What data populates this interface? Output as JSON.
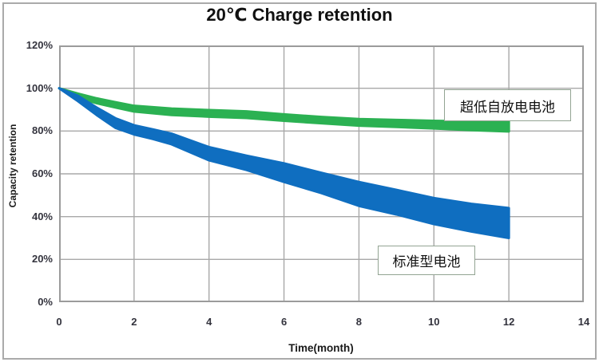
{
  "chart_data": {
    "type": "area",
    "title": "20℃ Charge retention",
    "xlabel": "Time(month)",
    "ylabel": "Capacity retention",
    "xlim": [
      0,
      14
    ],
    "ylim": [
      0,
      120
    ],
    "grid": true,
    "legend_position": "none",
    "x_ticks": [
      {
        "label": "0",
        "value": 0
      },
      {
        "label": "2",
        "value": 2
      },
      {
        "label": "4",
        "value": 4
      },
      {
        "label": "6",
        "value": 6
      },
      {
        "label": "8",
        "value": 8
      },
      {
        "label": "10",
        "value": 10
      },
      {
        "label": "12",
        "value": 12
      },
      {
        "label": "14",
        "value": 14
      }
    ],
    "y_ticks": [
      {
        "label": "0%",
        "value": 0
      },
      {
        "label": "20%",
        "value": 20
      },
      {
        "label": "40%",
        "value": 40
      },
      {
        "label": "60%",
        "value": 60
      },
      {
        "label": "80%",
        "value": 80
      },
      {
        "label": "100%",
        "value": 100
      },
      {
        "label": "120%",
        "value": 120
      }
    ],
    "series": [
      {
        "name": "超低自放电电池",
        "band": true,
        "color": "#2bb152",
        "x": [
          0,
          0.5,
          1,
          1.5,
          2,
          3,
          4,
          5,
          6,
          7,
          8,
          9,
          10,
          11,
          12
        ],
        "upper": [
          100,
          97.5,
          95.3,
          93.5,
          91.8,
          90.5,
          89.8,
          89.2,
          87.8,
          86.6,
          85.6,
          85.2,
          84.8,
          84.5,
          84.3
        ],
        "lower": [
          100,
          95.5,
          93.0,
          91.0,
          89.1,
          87.5,
          86.7,
          86.1,
          84.8,
          83.6,
          82.5,
          81.9,
          81.2,
          80.4,
          79.8
        ]
      },
      {
        "name": "标准型电池",
        "band": true,
        "color": "#0f6ec0",
        "x": [
          0,
          0.5,
          1,
          1.5,
          2,
          2.5,
          3,
          4,
          5,
          6,
          7,
          8,
          9,
          10,
          11,
          12
        ],
        "upper": [
          100,
          96.5,
          91.0,
          86.0,
          82.7,
          80.8,
          78.8,
          72.5,
          68.5,
          64.9,
          60.5,
          56.2,
          52.5,
          48.7,
          46.0,
          44.0
        ],
        "lower": [
          100,
          94.0,
          87.5,
          81.5,
          78.4,
          76.3,
          73.8,
          66.3,
          61.8,
          56.2,
          51.0,
          45.0,
          41.0,
          36.5,
          33.0,
          30.0
        ]
      }
    ],
    "annotations": [
      {
        "text": "超低自放电电池",
        "series": "ultra-low-self-discharge"
      },
      {
        "text": "标准型电池",
        "series": "standard"
      }
    ],
    "colors": {
      "gridline": "#a8a8a8",
      "plot_border": "#9b9b9b",
      "outer_border": "#aaaaaa",
      "tick_text": "#33333d",
      "green_band": "#2bb152",
      "blue_band": "#0f6ec0"
    }
  }
}
